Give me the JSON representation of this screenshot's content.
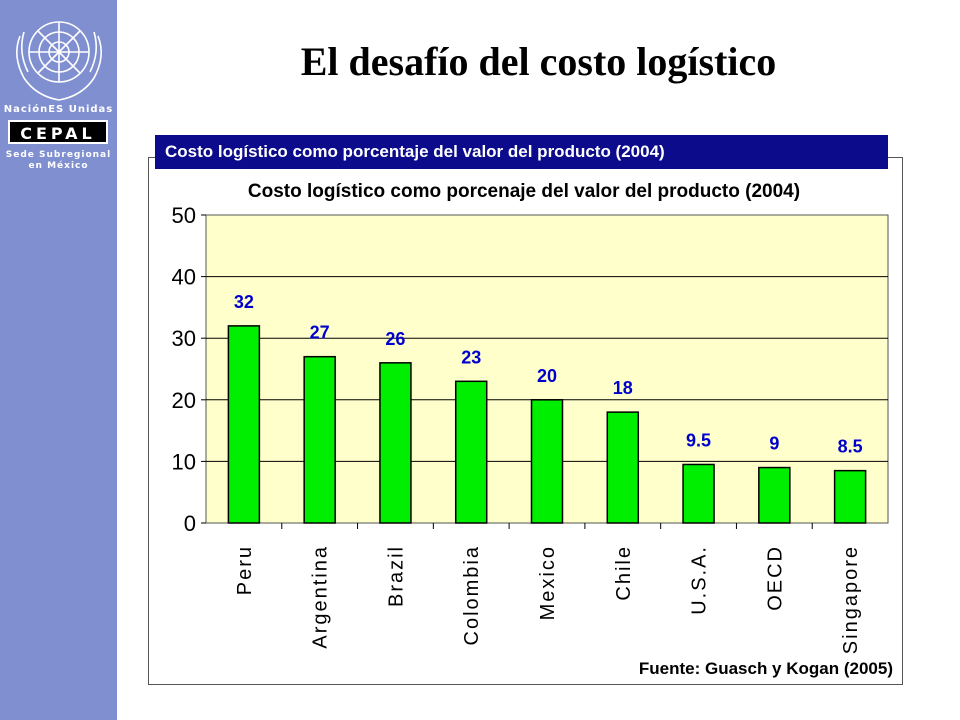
{
  "sidebar": {
    "org_name": "NaciónES Unidas",
    "cepal": "CEPAL",
    "sub_line1": "Sede Subregional",
    "sub_line2": "en México"
  },
  "slide": {
    "title": "El desafío del costo logístico",
    "caption": "Costo logístico como porcentaje del valor del producto (2004)"
  },
  "colors": {
    "sidebar": "#7f8fd0",
    "caption_bar": "#0b0b8c",
    "plot_bg": "#ffffcc",
    "bar_fill": "#00ee00",
    "data_label": "#0000cc"
  },
  "chart_data": {
    "type": "bar",
    "title": "Costo logístico como porcenaje del valor del producto (2004)",
    "categories": [
      "Peru",
      "Argentina",
      "Brazil",
      "Colombia",
      "Mexico",
      "Chile",
      "U.S.A.",
      "OECD",
      "Singapore"
    ],
    "values": [
      32,
      27,
      26,
      23,
      20,
      18,
      9.5,
      9,
      8.5
    ],
    "data_labels": [
      "32",
      "27",
      "26",
      "23",
      "20",
      "18",
      "9.5",
      "9",
      "8.5"
    ],
    "yticks": [
      "0",
      "10",
      "20",
      "30",
      "40",
      "50"
    ],
    "ylim": [
      0,
      50
    ],
    "xlabel": "",
    "ylabel": "",
    "grid": true,
    "legend": "none",
    "source_note": "Fuente: Guasch y Kogan (2005)"
  }
}
